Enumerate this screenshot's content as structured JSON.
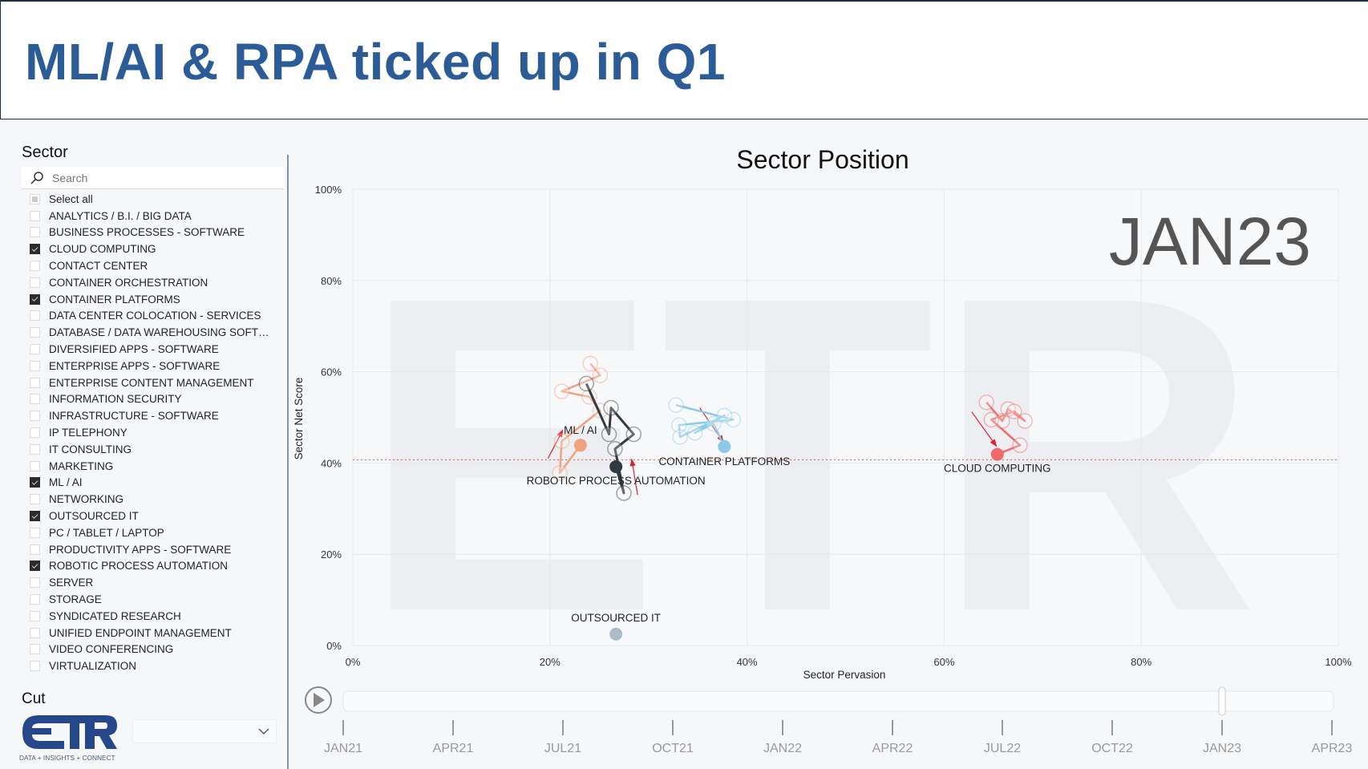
{
  "header": {
    "title": "ML/AI & RPA ticked up in Q1"
  },
  "sidebar": {
    "sector_label": "Sector",
    "search_placeholder": "Search",
    "items": [
      {
        "label": "Select all",
        "state": "partial"
      },
      {
        "label": "ANALYTICS / B.I. / BIG DATA",
        "state": "off"
      },
      {
        "label": "BUSINESS PROCESSES - SOFTWARE",
        "state": "off"
      },
      {
        "label": "CLOUD COMPUTING",
        "state": "on"
      },
      {
        "label": "CONTACT CENTER",
        "state": "off"
      },
      {
        "label": "CONTAINER ORCHESTRATION",
        "state": "off"
      },
      {
        "label": "CONTAINER PLATFORMS",
        "state": "on"
      },
      {
        "label": "DATA CENTER COLOCATION - SERVICES",
        "state": "off"
      },
      {
        "label": "DATABASE / DATA WAREHOUSING SOFT…",
        "state": "off"
      },
      {
        "label": "DIVERSIFIED APPS - SOFTWARE",
        "state": "off"
      },
      {
        "label": "ENTERPRISE APPS - SOFTWARE",
        "state": "off"
      },
      {
        "label": "ENTERPRISE CONTENT MANAGEMENT",
        "state": "off"
      },
      {
        "label": "INFORMATION SECURITY",
        "state": "off"
      },
      {
        "label": "INFRASTRUCTURE - SOFTWARE",
        "state": "off"
      },
      {
        "label": "IP TELEPHONY",
        "state": "off"
      },
      {
        "label": "IT CONSULTING",
        "state": "off"
      },
      {
        "label": "MARKETING",
        "state": "off"
      },
      {
        "label": "ML / AI",
        "state": "on"
      },
      {
        "label": "NETWORKING",
        "state": "off"
      },
      {
        "label": "OUTSOURCED IT",
        "state": "on"
      },
      {
        "label": "PC / TABLET / LAPTOP",
        "state": "off"
      },
      {
        "label": "PRODUCTIVITY APPS - SOFTWARE",
        "state": "off"
      },
      {
        "label": "ROBOTIC PROCESS AUTOMATION",
        "state": "on"
      },
      {
        "label": "SERVER",
        "state": "off"
      },
      {
        "label": "STORAGE",
        "state": "off"
      },
      {
        "label": "SYNDICATED RESEARCH",
        "state": "off"
      },
      {
        "label": "UNIFIED ENDPOINT MANAGEMENT",
        "state": "off"
      },
      {
        "label": "VIDEO CONFERENCING",
        "state": "off"
      },
      {
        "label": "VIRTUALIZATION",
        "state": "off"
      }
    ],
    "cut_label": "Cut",
    "cut_value": "",
    "logo_text": "ETR",
    "logo_tagline": "DATA + INSIGHTS + CONNECT"
  },
  "colors": {
    "title": "#2b5c98",
    "ml_ai": "#f0a27e",
    "rpa": "#333a3f",
    "container": "#8ccbe8",
    "cloud": "#ee6b6b",
    "outsourced": "#a9bccb",
    "reference_line": "#e05555",
    "arrow": "#d9232b"
  },
  "timeline": {
    "play_icon": "play-icon",
    "ticks": [
      "JAN21",
      "APR21",
      "JUL21",
      "OCT21",
      "JAN22",
      "APR22",
      "JUL22",
      "OCT22",
      "JAN23",
      "APR23"
    ],
    "selected": "JAN23"
  },
  "chart_data": {
    "type": "scatter",
    "title": "Sector Position",
    "watermark_period": "JAN23",
    "xlabel": "Sector Pervasion",
    "ylabel": "Sector Net Score",
    "xlim": [
      0,
      100
    ],
    "ylim": [
      0,
      100
    ],
    "xticks": [
      "0%",
      "20%",
      "40%",
      "60%",
      "80%",
      "100%"
    ],
    "yticks": [
      "0%",
      "20%",
      "40%",
      "60%",
      "80%",
      "100%"
    ],
    "grid": true,
    "reference_line_y": 40.7,
    "series": [
      {
        "name": "ML / AI",
        "color": "#f0a27e",
        "trail": [
          [
            24.1,
            61.8
          ],
          [
            25.1,
            59.2
          ],
          [
            21.2,
            55.7
          ],
          [
            24.0,
            54.5
          ],
          [
            25.1,
            51.5
          ],
          [
            21.2,
            44.8
          ],
          [
            21.0,
            37.8
          ]
        ],
        "current": [
          23.1,
          43.9
        ]
      },
      {
        "name": "ROBOTIC PROCESS AUTOMATION",
        "color": "#333a3f",
        "trail": [
          [
            23.7,
            57.4
          ],
          [
            26.0,
            46.3
          ],
          [
            26.2,
            52.1
          ],
          [
            28.5,
            46.3
          ],
          [
            26.6,
            43.1
          ],
          [
            27.5,
            33.4
          ]
        ],
        "current": [
          26.7,
          39.2
        ]
      },
      {
        "name": "CONTAINER PLATFORMS",
        "color": "#8ccbe8",
        "trail": [
          [
            32.8,
            52.7
          ],
          [
            38.6,
            49.5
          ],
          [
            33.1,
            48.3
          ],
          [
            33.2,
            45.7
          ],
          [
            37.7,
            50.4
          ],
          [
            34.7,
            46.6
          ],
          [
            36.6,
            48.6
          ]
        ],
        "current": [
          37.7,
          43.6
        ]
      },
      {
        "name": "CLOUD COMPUTING",
        "color": "#ee6b6b",
        "trail": [
          [
            64.3,
            53.3
          ],
          [
            65.9,
            49.2
          ],
          [
            66.5,
            51.8
          ],
          [
            68.2,
            49.2
          ],
          [
            67.1,
            51.3
          ],
          [
            64.8,
            49.5
          ],
          [
            67.7,
            43.9
          ]
        ],
        "current": [
          65.4,
          41.9
        ]
      },
      {
        "name": "OUTSOURCED IT",
        "color": "#a9bccb",
        "trail": [],
        "current": [
          26.7,
          2.5
        ]
      }
    ]
  }
}
